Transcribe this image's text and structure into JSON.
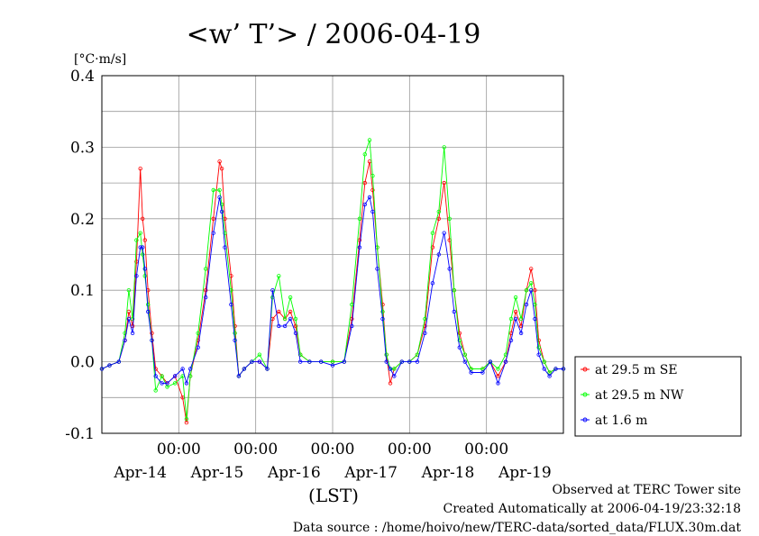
{
  "chart_data": {
    "type": "line",
    "title": "<w’ T’> / 2006-04-19",
    "ylabel": "[°C·m/s]",
    "xlabel": "(LST)",
    "ylim": [
      -0.1,
      0.4
    ],
    "yticks": [
      "0.4",
      "0.3",
      "0.2",
      "0.1",
      "0.0",
      "-0.1"
    ],
    "x_unit": "days since Apr-13 00:00 (half-hourly)",
    "xlim": [
      0,
      6
    ],
    "time_ticks": [
      "00:00",
      "00:00",
      "00:00",
      "00:00",
      "00:00"
    ],
    "date_labels": [
      "Apr-14",
      "Apr-15",
      "Apr-16",
      "Apr-17",
      "Apr-18",
      "Apr-19"
    ],
    "grid": true,
    "legend_position": "right",
    "series": [
      {
        "name": "at 29.5 m SE",
        "color": "#ff0000",
        "points": [
          [
            0.0,
            -0.01
          ],
          [
            0.1,
            -0.005
          ],
          [
            0.22,
            0.0
          ],
          [
            0.3,
            0.03
          ],
          [
            0.35,
            0.07
          ],
          [
            0.4,
            0.05
          ],
          [
            0.45,
            0.14
          ],
          [
            0.5,
            0.27
          ],
          [
            0.53,
            0.2
          ],
          [
            0.56,
            0.17
          ],
          [
            0.6,
            0.1
          ],
          [
            0.65,
            0.04
          ],
          [
            0.7,
            -0.01
          ],
          [
            0.78,
            -0.02
          ],
          [
            0.85,
            -0.03
          ],
          [
            0.95,
            -0.02
          ],
          [
            1.05,
            -0.05
          ],
          [
            1.1,
            -0.085
          ],
          [
            1.15,
            -0.02
          ],
          [
            1.25,
            0.03
          ],
          [
            1.35,
            0.1
          ],
          [
            1.45,
            0.2
          ],
          [
            1.53,
            0.28
          ],
          [
            1.56,
            0.27
          ],
          [
            1.6,
            0.2
          ],
          [
            1.68,
            0.12
          ],
          [
            1.73,
            0.05
          ],
          [
            1.78,
            -0.02
          ],
          [
            1.85,
            -0.01
          ],
          [
            1.95,
            0.0
          ],
          [
            2.05,
            0.0
          ],
          [
            2.15,
            -0.01
          ],
          [
            2.22,
            0.06
          ],
          [
            2.3,
            0.07
          ],
          [
            2.38,
            0.06
          ],
          [
            2.45,
            0.07
          ],
          [
            2.52,
            0.05
          ],
          [
            2.58,
            0.01
          ],
          [
            2.7,
            0.0
          ],
          [
            2.85,
            0.0
          ],
          [
            3.0,
            0.0
          ],
          [
            3.15,
            0.0
          ],
          [
            3.25,
            0.06
          ],
          [
            3.35,
            0.17
          ],
          [
            3.42,
            0.25
          ],
          [
            3.48,
            0.28
          ],
          [
            3.52,
            0.24
          ],
          [
            3.58,
            0.16
          ],
          [
            3.65,
            0.08
          ],
          [
            3.7,
            0.01
          ],
          [
            3.75,
            -0.03
          ],
          [
            3.8,
            -0.01
          ],
          [
            3.9,
            0.0
          ],
          [
            4.0,
            0.0
          ],
          [
            4.1,
            0.01
          ],
          [
            4.2,
            0.05
          ],
          [
            4.3,
            0.16
          ],
          [
            4.38,
            0.2
          ],
          [
            4.45,
            0.25
          ],
          [
            4.52,
            0.17
          ],
          [
            4.58,
            0.1
          ],
          [
            4.65,
            0.04
          ],
          [
            4.72,
            0.01
          ],
          [
            4.8,
            -0.01
          ],
          [
            4.95,
            -0.01
          ],
          [
            5.05,
            0.0
          ],
          [
            5.15,
            -0.02
          ],
          [
            5.25,
            0.0
          ],
          [
            5.32,
            0.04
          ],
          [
            5.38,
            0.07
          ],
          [
            5.45,
            0.05
          ],
          [
            5.52,
            0.1
          ],
          [
            5.58,
            0.13
          ],
          [
            5.63,
            0.1
          ],
          [
            5.68,
            0.03
          ],
          [
            5.75,
            0.0
          ],
          [
            5.82,
            -0.015
          ],
          [
            5.9,
            -0.01
          ],
          [
            6.0,
            -0.01
          ]
        ]
      },
      {
        "name": "at 29.5 m NW",
        "color": "#00ff00",
        "points": [
          [
            0.0,
            -0.01
          ],
          [
            0.1,
            -0.005
          ],
          [
            0.22,
            0.0
          ],
          [
            0.3,
            0.04
          ],
          [
            0.35,
            0.1
          ],
          [
            0.4,
            0.06
          ],
          [
            0.45,
            0.17
          ],
          [
            0.5,
            0.18
          ],
          [
            0.53,
            0.15
          ],
          [
            0.56,
            0.12
          ],
          [
            0.6,
            0.08
          ],
          [
            0.65,
            0.03
          ],
          [
            0.7,
            -0.04
          ],
          [
            0.78,
            -0.02
          ],
          [
            0.85,
            -0.035
          ],
          [
            0.95,
            -0.03
          ],
          [
            1.05,
            -0.02
          ],
          [
            1.1,
            -0.08
          ],
          [
            1.15,
            -0.02
          ],
          [
            1.25,
            0.04
          ],
          [
            1.35,
            0.13
          ],
          [
            1.45,
            0.24
          ],
          [
            1.53,
            0.24
          ],
          [
            1.56,
            0.22
          ],
          [
            1.6,
            0.18
          ],
          [
            1.68,
            0.1
          ],
          [
            1.73,
            0.04
          ],
          [
            1.78,
            -0.02
          ],
          [
            1.85,
            -0.01
          ],
          [
            1.95,
            0.0
          ],
          [
            2.05,
            0.01
          ],
          [
            2.15,
            -0.01
          ],
          [
            2.22,
            0.09
          ],
          [
            2.3,
            0.12
          ],
          [
            2.38,
            0.06
          ],
          [
            2.45,
            0.09
          ],
          [
            2.52,
            0.06
          ],
          [
            2.58,
            0.01
          ],
          [
            2.7,
            0.0
          ],
          [
            2.85,
            0.0
          ],
          [
            3.0,
            0.0
          ],
          [
            3.15,
            0.0
          ],
          [
            3.25,
            0.08
          ],
          [
            3.35,
            0.2
          ],
          [
            3.42,
            0.29
          ],
          [
            3.48,
            0.31
          ],
          [
            3.52,
            0.26
          ],
          [
            3.58,
            0.16
          ],
          [
            3.65,
            0.07
          ],
          [
            3.7,
            0.01
          ],
          [
            3.75,
            -0.01
          ],
          [
            3.8,
            -0.01
          ],
          [
            3.9,
            0.0
          ],
          [
            4.0,
            0.0
          ],
          [
            4.1,
            0.01
          ],
          [
            4.2,
            0.06
          ],
          [
            4.3,
            0.18
          ],
          [
            4.38,
            0.21
          ],
          [
            4.45,
            0.3
          ],
          [
            4.52,
            0.2
          ],
          [
            4.58,
            0.1
          ],
          [
            4.65,
            0.03
          ],
          [
            4.72,
            0.01
          ],
          [
            4.8,
            -0.01
          ],
          [
            4.95,
            -0.01
          ],
          [
            5.05,
            0.0
          ],
          [
            5.15,
            -0.01
          ],
          [
            5.25,
            0.01
          ],
          [
            5.32,
            0.06
          ],
          [
            5.38,
            0.09
          ],
          [
            5.45,
            0.06
          ],
          [
            5.52,
            0.1
          ],
          [
            5.58,
            0.11
          ],
          [
            5.63,
            0.08
          ],
          [
            5.68,
            0.02
          ],
          [
            5.75,
            0.0
          ],
          [
            5.82,
            -0.015
          ],
          [
            5.9,
            -0.01
          ],
          [
            6.0,
            -0.01
          ]
        ]
      },
      {
        "name": "at 1.6 m",
        "color": "#0000ff",
        "points": [
          [
            0.0,
            -0.01
          ],
          [
            0.1,
            -0.005
          ],
          [
            0.22,
            0.0
          ],
          [
            0.3,
            0.03
          ],
          [
            0.35,
            0.06
          ],
          [
            0.4,
            0.04
          ],
          [
            0.45,
            0.12
          ],
          [
            0.5,
            0.16
          ],
          [
            0.53,
            0.16
          ],
          [
            0.56,
            0.13
          ],
          [
            0.6,
            0.07
          ],
          [
            0.65,
            0.03
          ],
          [
            0.7,
            -0.02
          ],
          [
            0.78,
            -0.03
          ],
          [
            0.85,
            -0.03
          ],
          [
            0.95,
            -0.02
          ],
          [
            1.05,
            -0.01
          ],
          [
            1.1,
            -0.03
          ],
          [
            1.15,
            -0.01
          ],
          [
            1.25,
            0.02
          ],
          [
            1.35,
            0.09
          ],
          [
            1.45,
            0.18
          ],
          [
            1.53,
            0.23
          ],
          [
            1.56,
            0.21
          ],
          [
            1.6,
            0.16
          ],
          [
            1.68,
            0.08
          ],
          [
            1.73,
            0.03
          ],
          [
            1.78,
            -0.02
          ],
          [
            1.85,
            -0.01
          ],
          [
            1.95,
            0.0
          ],
          [
            2.05,
            0.0
          ],
          [
            2.15,
            -0.01
          ],
          [
            2.22,
            0.1
          ],
          [
            2.3,
            0.05
          ],
          [
            2.38,
            0.05
          ],
          [
            2.45,
            0.06
          ],
          [
            2.52,
            0.04
          ],
          [
            2.58,
            0.0
          ],
          [
            2.7,
            0.0
          ],
          [
            2.85,
            0.0
          ],
          [
            3.0,
            -0.005
          ],
          [
            3.15,
            0.0
          ],
          [
            3.25,
            0.05
          ],
          [
            3.35,
            0.16
          ],
          [
            3.42,
            0.22
          ],
          [
            3.48,
            0.23
          ],
          [
            3.52,
            0.21
          ],
          [
            3.58,
            0.13
          ],
          [
            3.65,
            0.06
          ],
          [
            3.7,
            0.0
          ],
          [
            3.75,
            -0.01
          ],
          [
            3.8,
            -0.02
          ],
          [
            3.9,
            0.0
          ],
          [
            4.0,
            0.0
          ],
          [
            4.1,
            0.0
          ],
          [
            4.2,
            0.04
          ],
          [
            4.3,
            0.11
          ],
          [
            4.38,
            0.15
          ],
          [
            4.45,
            0.18
          ],
          [
            4.52,
            0.13
          ],
          [
            4.58,
            0.07
          ],
          [
            4.65,
            0.02
          ],
          [
            4.72,
            0.0
          ],
          [
            4.8,
            -0.015
          ],
          [
            4.95,
            -0.015
          ],
          [
            5.05,
            0.0
          ],
          [
            5.15,
            -0.03
          ],
          [
            5.25,
            0.0
          ],
          [
            5.32,
            0.03
          ],
          [
            5.38,
            0.06
          ],
          [
            5.45,
            0.04
          ],
          [
            5.52,
            0.08
          ],
          [
            5.58,
            0.1
          ],
          [
            5.63,
            0.06
          ],
          [
            5.68,
            0.01
          ],
          [
            5.75,
            -0.01
          ],
          [
            5.82,
            -0.02
          ],
          [
            5.9,
            -0.01
          ],
          [
            6.0,
            -0.01
          ]
        ]
      }
    ]
  },
  "footer": {
    "site": "Observed at TERC Tower site",
    "created": "Created Automatically at 2006-04-19/23:32:18",
    "source": "Data source : /home/hoivo/new/TERC-data/sorted_data/FLUX.30m.dat"
  }
}
